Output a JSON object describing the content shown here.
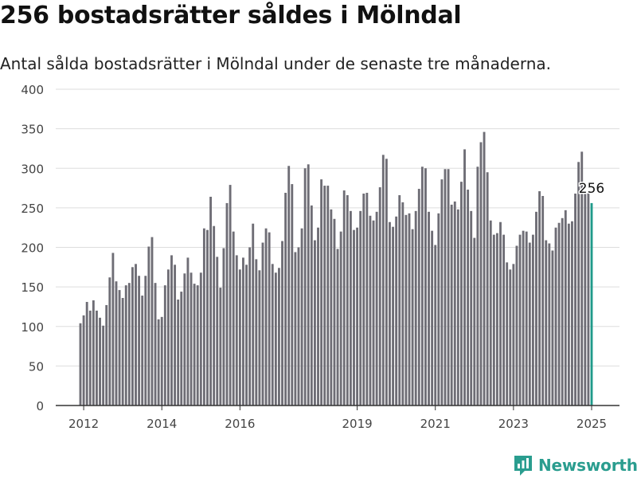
{
  "header": {
    "title": "256 bostadsrätter såldes i Mölndal",
    "subtitle": "Antal sålda bostadsrätter i Mölndal under de senaste tre månaderna."
  },
  "brand": {
    "name": "Newsworthy",
    "color": "#2a9d8f"
  },
  "colors": {
    "bar": "#6e6d75",
    "highlight": "#1f9a8a",
    "grid": "#dddddd",
    "axis": "#333333"
  },
  "chart_data": {
    "type": "bar",
    "title": "256 bostadsrätter såldes i Mölndal",
    "subtitle": "Antal sålda bostadsrätter i Mölndal under de senaste tre månaderna.",
    "xlabel": "",
    "ylabel": "",
    "ylim": [
      0,
      400
    ],
    "yticks": [
      0,
      50,
      100,
      150,
      200,
      250,
      300,
      350,
      400
    ],
    "xticks": [
      "2012",
      "2014",
      "2016",
      "2019",
      "2021",
      "2023",
      "2025"
    ],
    "grid": true,
    "x_start": "2011-12",
    "x_interval": "month",
    "highlight_label": "256",
    "values": [
      104,
      114,
      131,
      120,
      133,
      120,
      111,
      101,
      127,
      162,
      193,
      157,
      146,
      136,
      152,
      155,
      175,
      179,
      164,
      139,
      164,
      201,
      213,
      155,
      109,
      112,
      152,
      172,
      190,
      178,
      134,
      144,
      167,
      187,
      168,
      154,
      152,
      168,
      224,
      222,
      264,
      227,
      188,
      149,
      199,
      256,
      279,
      220,
      190,
      172,
      187,
      178,
      200,
      230,
      185,
      171,
      206,
      224,
      219,
      179,
      168,
      174,
      208,
      269,
      303,
      280,
      194,
      200,
      224,
      300,
      305,
      253,
      209,
      225,
      286,
      278,
      278,
      248,
      236,
      198,
      220,
      272,
      266,
      246,
      222,
      225,
      246,
      268,
      269,
      240,
      234,
      245,
      276,
      317,
      312,
      232,
      226,
      239,
      266,
      257,
      241,
      243,
      223,
      246,
      274,
      302,
      300,
      245,
      221,
      203,
      243,
      286,
      299,
      299,
      254,
      258,
      248,
      283,
      324,
      273,
      246,
      212,
      302,
      333,
      346,
      295,
      234,
      216,
      218,
      232,
      216,
      181,
      172,
      179,
      202,
      216,
      221,
      220,
      206,
      216,
      245,
      271,
      265,
      209,
      205,
      196,
      225,
      231,
      237,
      247,
      230,
      233,
      268,
      308,
      321,
      270,
      270,
      256
    ]
  }
}
